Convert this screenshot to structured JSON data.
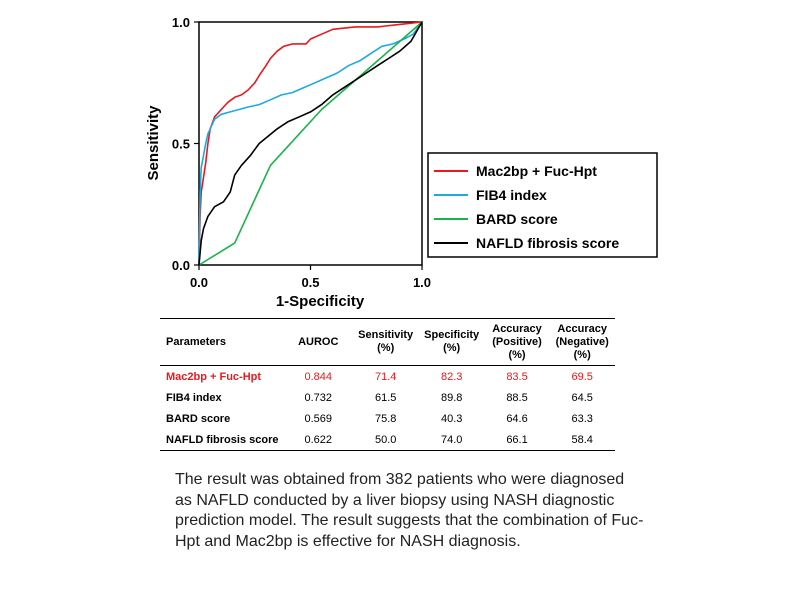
{
  "chart_data": {
    "type": "line",
    "title": "",
    "xlabel": "1-Specificity",
    "ylabel": "Sensitivity",
    "xlim": [
      0,
      1
    ],
    "ylim": [
      0,
      1
    ],
    "x_ticks": [
      "0.0",
      "0.5",
      "1.0"
    ],
    "y_ticks": [
      "0.0",
      "0.5",
      "1.0"
    ],
    "grid": false,
    "legend_position": "bottom-right",
    "series": [
      {
        "name": "Mac2bp + Fuc-Hpt",
        "color": "#e8191f",
        "points": [
          [
            0,
            0
          ],
          [
            0.005,
            0.2
          ],
          [
            0.01,
            0.3
          ],
          [
            0.02,
            0.36
          ],
          [
            0.03,
            0.42
          ],
          [
            0.04,
            0.5
          ],
          [
            0.05,
            0.56
          ],
          [
            0.07,
            0.61
          ],
          [
            0.09,
            0.63
          ],
          [
            0.11,
            0.65
          ],
          [
            0.13,
            0.67
          ],
          [
            0.16,
            0.69
          ],
          [
            0.19,
            0.7
          ],
          [
            0.22,
            0.72
          ],
          [
            0.25,
            0.75
          ],
          [
            0.27,
            0.78
          ],
          [
            0.3,
            0.82
          ],
          [
            0.32,
            0.85
          ],
          [
            0.35,
            0.88
          ],
          [
            0.38,
            0.9
          ],
          [
            0.42,
            0.91
          ],
          [
            0.48,
            0.91
          ],
          [
            0.5,
            0.93
          ],
          [
            0.55,
            0.95
          ],
          [
            0.6,
            0.97
          ],
          [
            0.7,
            0.98
          ],
          [
            0.8,
            0.98
          ],
          [
            0.9,
            0.99
          ],
          [
            1,
            1
          ]
        ]
      },
      {
        "name": "FIB4 index",
        "color": "#1eaadf",
        "points": [
          [
            0,
            0
          ],
          [
            0.005,
            0.3
          ],
          [
            0.01,
            0.4
          ],
          [
            0.02,
            0.45
          ],
          [
            0.03,
            0.5
          ],
          [
            0.04,
            0.54
          ],
          [
            0.05,
            0.56
          ],
          [
            0.07,
            0.6
          ],
          [
            0.1,
            0.62
          ],
          [
            0.14,
            0.63
          ],
          [
            0.18,
            0.64
          ],
          [
            0.22,
            0.65
          ],
          [
            0.27,
            0.66
          ],
          [
            0.32,
            0.68
          ],
          [
            0.37,
            0.7
          ],
          [
            0.42,
            0.71
          ],
          [
            0.47,
            0.73
          ],
          [
            0.52,
            0.75
          ],
          [
            0.57,
            0.77
          ],
          [
            0.62,
            0.79
          ],
          [
            0.67,
            0.82
          ],
          [
            0.72,
            0.84
          ],
          [
            0.77,
            0.87
          ],
          [
            0.82,
            0.9
          ],
          [
            0.87,
            0.91
          ],
          [
            0.92,
            0.93
          ],
          [
            0.96,
            0.95
          ],
          [
            1,
            1
          ]
        ]
      },
      {
        "name": "BARD score",
        "color": "#1ab34a",
        "points": [
          [
            0,
            0
          ],
          [
            0.16,
            0.09
          ],
          [
            0.32,
            0.41
          ],
          [
            0.55,
            0.64
          ],
          [
            0.75,
            0.8
          ],
          [
            1,
            1
          ]
        ]
      },
      {
        "name": "NAFLD fibrosis score",
        "color": "#000000",
        "points": [
          [
            0,
            0
          ],
          [
            0.01,
            0.1
          ],
          [
            0.02,
            0.15
          ],
          [
            0.04,
            0.2
          ],
          [
            0.07,
            0.24
          ],
          [
            0.11,
            0.26
          ],
          [
            0.14,
            0.3
          ],
          [
            0.16,
            0.37
          ],
          [
            0.19,
            0.41
          ],
          [
            0.23,
            0.45
          ],
          [
            0.27,
            0.5
          ],
          [
            0.31,
            0.53
          ],
          [
            0.35,
            0.56
          ],
          [
            0.4,
            0.59
          ],
          [
            0.45,
            0.61
          ],
          [
            0.5,
            0.63
          ],
          [
            0.55,
            0.66
          ],
          [
            0.6,
            0.7
          ],
          [
            0.65,
            0.73
          ],
          [
            0.7,
            0.76
          ],
          [
            0.75,
            0.79
          ],
          [
            0.8,
            0.82
          ],
          [
            0.85,
            0.85
          ],
          [
            0.9,
            0.88
          ],
          [
            0.95,
            0.92
          ],
          [
            1,
            1
          ]
        ]
      }
    ]
  },
  "table": {
    "highlight_color": "#e8191f",
    "headers": {
      "parameters": "Parameters",
      "auroc": "AUROC",
      "sensitivity": [
        "Sensitivity",
        "(%)"
      ],
      "specificity": [
        "Specificity",
        "(%)"
      ],
      "accuracy_positive": [
        "Accuracy",
        "(Positive)",
        "(%)"
      ],
      "accuracy_negative": [
        "Accuracy",
        "(Negative)",
        "(%)"
      ]
    },
    "rows": [
      {
        "parameter": "Mac2bp + Fuc-Hpt",
        "auroc": "0.844",
        "sensitivity": "71.4",
        "specificity": "82.3",
        "accuracy_positive": "83.5",
        "accuracy_negative": "69.5"
      },
      {
        "parameter": "FIB4 index",
        "auroc": "0.732",
        "sensitivity": "61.5",
        "specificity": "89.8",
        "accuracy_positive": "88.5",
        "accuracy_negative": "64.5"
      },
      {
        "parameter": "BARD score",
        "auroc": "0.569",
        "sensitivity": "75.8",
        "specificity": "40.3",
        "accuracy_positive": "64.6",
        "accuracy_negative": "63.3"
      },
      {
        "parameter": "NAFLD fibrosis score",
        "auroc": "0.622",
        "sensitivity": "50.0",
        "specificity": "74.0",
        "accuracy_positive": "66.1",
        "accuracy_negative": "58.4"
      }
    ]
  },
  "caption": "The result was obtained from 382 patients who were diagnosed as NAFLD conducted by a liver biopsy using NASH diagnostic prediction model. The result suggests that the combination of Fuc-Hpt and Mac2bp is effective for NASH diagnosis."
}
